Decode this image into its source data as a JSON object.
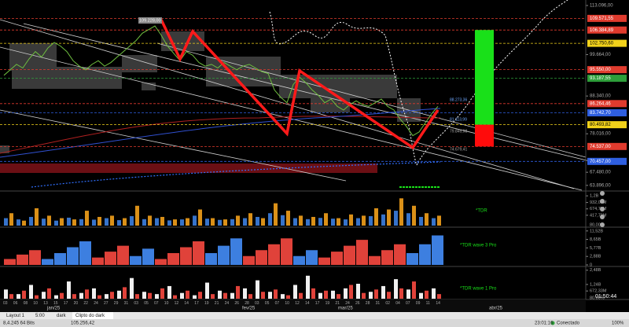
{
  "main": {
    "ylim": [
      63000,
      114600
    ],
    "closes": [
      94000,
      95500,
      97000,
      96000,
      98500,
      100500,
      99000,
      101500,
      103000,
      102000,
      100500,
      98000,
      96500,
      95500,
      97000,
      98000,
      96500,
      97500,
      99000,
      100500,
      102000,
      103500,
      105500,
      106500,
      107500,
      105000,
      102000,
      100000,
      98000,
      100500,
      99500,
      97500,
      96500,
      97000,
      96000,
      97500,
      96500,
      95500,
      96500,
      97000,
      96000,
      95000,
      94500,
      90000,
      88000,
      86500,
      91500,
      93500,
      92000,
      90000,
      88500,
      86500,
      87500,
      85500,
      84500,
      86000,
      87000,
      86000,
      85500,
      86500,
      87500,
      85500,
      84500,
      82000,
      80000,
      77500,
      78500,
      81000,
      83500,
      85500
    ],
    "close_color": "#6fbf3f",
    "zigzag": {
      "x": [
        25,
        28,
        30,
        45,
        47,
        65,
        69
      ],
      "values": [
        109229,
        98486,
        106006,
        78076,
        95264,
        74208,
        84521
      ],
      "color": "#ff1a1a"
    },
    "price_levels": [
      {
        "value": 113096,
        "label": "113.096,00"
      },
      {
        "value": 109571.55,
        "label": "109.571,55",
        "color": "#e03b2e"
      },
      {
        "value": 106384.89,
        "label": "106.384,89",
        "color": "#e03b2e"
      },
      {
        "value": 102750.6,
        "label": "102.750,60",
        "color": "#f2d21b"
      },
      {
        "value": 99664,
        "label": "99.664,00"
      },
      {
        "value": 95550,
        "label": "95.550,00",
        "color": "#e03b2e"
      },
      {
        "value": 93187.55,
        "label": "93.187,55",
        "color": "#2e9e3a"
      },
      {
        "value": 88340,
        "label": "88.340,00"
      },
      {
        "value": 86264.46,
        "label": "86.264,46",
        "color": "#e03b2e"
      },
      {
        "value": 83742.7,
        "label": "83.742,70",
        "color": "#2f5fe0"
      },
      {
        "value": 80493.82,
        "label": "80.493,82",
        "color": "#f2d21b"
      },
      {
        "value": 78016,
        "label": "78.016,00"
      },
      {
        "value": 74537,
        "label": "74.537,00",
        "color": "#e03b2e"
      },
      {
        "value": 70457,
        "label": "70.457,00",
        "color": "#2f5fe0"
      },
      {
        "value": 67480,
        "label": "67.480,00"
      },
      {
        "value": 63896,
        "label": "63.896,00"
      }
    ],
    "target": {
      "high_level": 2,
      "mid_level": 10,
      "low_level": 12,
      "up_color": "#19e019",
      "down_color": "#ff0b0b"
    },
    "annotations": [
      "109.228,00",
      "88.273,36",
      "81.113,99",
      "79.845,98",
      "74.679,41"
    ],
    "countdown": "01:50:44"
  },
  "panels": [
    {
      "title": "*TDR",
      "ylim": [
        0,
        1300
      ],
      "yticks": [
        {
          "value": 1200,
          "label": "1,2B"
        },
        {
          "value": 932.09,
          "label": "932,09M"
        },
        {
          "value": 674.79,
          "label": "674,79M"
        },
        {
          "value": 417.79,
          "label": "417,79M"
        }
      ],
      "extra_label": "80,00%",
      "series": [
        {
          "color": "#3d7fe0",
          "values": [
            300,
            250,
            350,
            280,
            200,
            320,
            260,
            240,
            300,
            220,
            380,
            260,
            300,
            210,
            250,
            400,
            280,
            230,
            260,
            300,
            350,
            500,
            420,
            300,
            260,
            310,
            280,
            250,
            300,
            380,
            450,
            600,
            500,
            350,
            300
          ]
        },
        {
          "color": "#f2a01b",
          "values": [
            500,
            200,
            700,
            400,
            300,
            250,
            600,
            350,
            400,
            300,
            800,
            400,
            350,
            250,
            300,
            650,
            300,
            250,
            400,
            500,
            300,
            900,
            600,
            400,
            350,
            500,
            300,
            450,
            400,
            700,
            650,
            1100,
            800,
            500,
            400
          ]
        }
      ]
    },
    {
      "title": "*TDR wave 3 Pro",
      "ylim": [
        0,
        12000
      ],
      "yticks": [
        {
          "value": 11520,
          "label": "11,52B"
        },
        {
          "value": 8650,
          "label": "8,65B"
        },
        {
          "value": 5770,
          "label": "5,77B"
        },
        {
          "value": 2880,
          "label": "2,88B"
        },
        0
      ],
      "series": [
        {
          "color": "#3d7fe0",
          "values": [
            null,
            null,
            null,
            2000,
            4000,
            6000,
            8000,
            null,
            null,
            null,
            3000,
            5500,
            null,
            null,
            null,
            null,
            4000,
            6500,
            9000,
            null,
            null,
            null,
            null,
            3000,
            5000,
            null,
            null,
            null,
            null,
            null,
            null,
            null,
            4000,
            7000,
            10000
          ]
        },
        {
          "color": "#e0423a",
          "values": [
            2000,
            3500,
            5000,
            null,
            null,
            null,
            null,
            2500,
            4500,
            6500,
            null,
            null,
            2000,
            4000,
            6000,
            8000,
            null,
            null,
            null,
            3000,
            5000,
            7000,
            9000,
            null,
            null,
            2500,
            4500,
            6500,
            8500,
            3000,
            5000,
            7000,
            null,
            null,
            null
          ]
        }
      ]
    },
    {
      "title": "*TDR wave 1 Pro",
      "ylim": [
        0,
        2600
      ],
      "yticks": [
        {
          "value": 2480,
          "label": "2,48B"
        },
        {
          "value": 1240,
          "label": "1,24B"
        },
        {
          "value": 672.33,
          "label": "672,33M"
        }
      ],
      "extra_label": "80,00%",
      "series": [
        {
          "color": "#f0f0f0",
          "values": [
            800,
            400,
            1200,
            600,
            300,
            1500,
            500,
            900,
            400,
            700,
            1800,
            600,
            400,
            1100,
            500,
            300,
            1400,
            700,
            500,
            900,
            1600,
            600,
            400,
            1200,
            2000,
            500,
            700,
            900,
            1300,
            600,
            1100,
            1700,
            800,
            500,
            900
          ]
        },
        {
          "color": "#e0423a",
          "values": [
            400,
            700,
            300,
            900,
            500,
            400,
            800,
            300,
            600,
            1000,
            400,
            500,
            900,
            300,
            700,
            600,
            400,
            500,
            1100,
            400,
            600,
            800,
            300,
            500,
            900,
            700,
            400,
            1200,
            500,
            800,
            600,
            900,
            1500,
            700,
            400
          ]
        }
      ]
    }
  ],
  "time_axis": {
    "days": [
      "03",
      "06",
      "08",
      "10",
      "13",
      "15",
      "17",
      "20",
      "22",
      "24",
      "27",
      "29",
      "31",
      "03",
      "05",
      "07",
      "10",
      "12",
      "14",
      "17",
      "19",
      "21",
      "24",
      "26",
      "28",
      "03",
      "05",
      "07",
      "10",
      "12",
      "14",
      "17",
      "19",
      "21",
      "24",
      "26",
      "28",
      "31",
      "02",
      "04",
      "07",
      "09",
      "11",
      "14"
    ],
    "months": [
      "jan/25",
      "fev/25",
      "mar/25",
      "abr/25"
    ]
  },
  "status_bar": {
    "tabs": [
      "Layout 1",
      "5:00",
      "dark",
      "Clipto do dark"
    ],
    "memory": "8,4.245 64 Bits",
    "price": "105.256,42",
    "connection": "Conectado",
    "clock": "23:01:16",
    "zoom": "100%"
  }
}
